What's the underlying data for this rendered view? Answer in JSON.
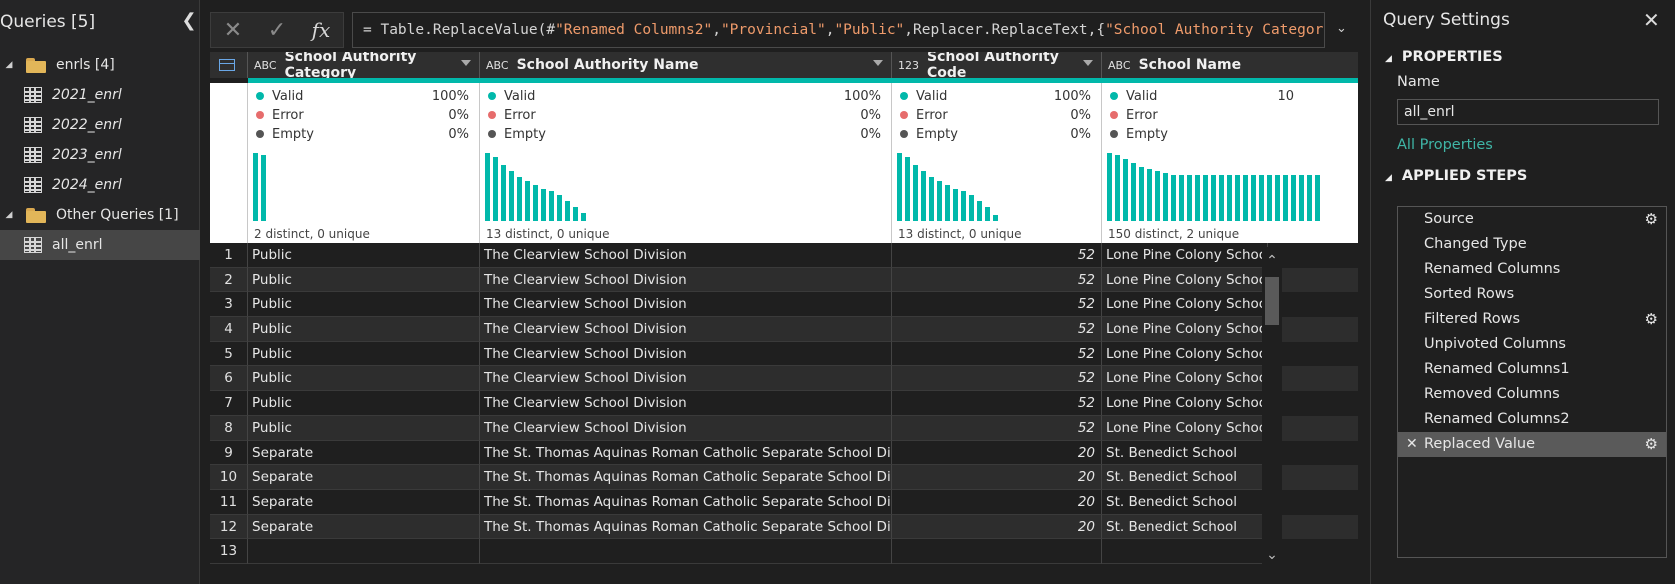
{
  "queries_pane": {
    "title": "Queries [5]",
    "groups": [
      {
        "label": "enrls [4]",
        "items": [
          "2021_enrl",
          "2022_enrl",
          "2023_enrl",
          "2024_enrl"
        ]
      },
      {
        "label": "Other Queries [1]",
        "items": [
          "all_enrl"
        ]
      }
    ],
    "selected": "all_enrl"
  },
  "formula_bar": {
    "prefix": "= Table.ReplaceValue(#",
    "s1": "\"Renamed Columns2\"",
    "c1": ",",
    "s2": "\"Provincial\"",
    "c2": ",",
    "s3": "\"Public\"",
    "mid": ",Replacer.ReplaceText,{",
    "s4": "\"School Authority Category\"",
    "suffix": "})",
    "fx_label": "fx"
  },
  "grid": {
    "columns": [
      {
        "type": "ABC",
        "name": "School Authority Category",
        "valid": "100%",
        "error": "0%",
        "empty": "0%",
        "distinct": "2 distinct, 0 unique",
        "bars": [
          68,
          66
        ]
      },
      {
        "type": "ABC",
        "name": "School Authority Name",
        "valid": "100%",
        "error": "0%",
        "empty": "0%",
        "distinct": "13 distinct, 0 unique",
        "bars": [
          68,
          64,
          56,
          50,
          44,
          40,
          36,
          32,
          30,
          26,
          20,
          14,
          8
        ]
      },
      {
        "type": "123",
        "name": "School Authority Code",
        "valid": "100%",
        "error": "0%",
        "empty": "0%",
        "distinct": "13 distinct, 0 unique",
        "bars": [
          68,
          64,
          56,
          50,
          44,
          40,
          36,
          32,
          30,
          26,
          20,
          14,
          6
        ]
      },
      {
        "type": "ABC",
        "name": "School Name",
        "valid": "10",
        "error": "",
        "empty": "",
        "distinct": "150 distinct, 2 unique",
        "bars": [
          68,
          66,
          62,
          58,
          54,
          52,
          50,
          48,
          46,
          46,
          46,
          46,
          46,
          46,
          46,
          46,
          46,
          46,
          46,
          46,
          46,
          46,
          46,
          46,
          46,
          46,
          46
        ]
      }
    ],
    "labels": {
      "valid": "Valid",
      "error": "Error",
      "empty": "Empty"
    },
    "rows": [
      [
        "1",
        "Public",
        "The Clearview School Division",
        "52",
        "Lone Pine Colony School"
      ],
      [
        "2",
        "Public",
        "The Clearview School Division",
        "52",
        "Lone Pine Colony School"
      ],
      [
        "3",
        "Public",
        "The Clearview School Division",
        "52",
        "Lone Pine Colony School"
      ],
      [
        "4",
        "Public",
        "The Clearview School Division",
        "52",
        "Lone Pine Colony School"
      ],
      [
        "5",
        "Public",
        "The Clearview School Division",
        "52",
        "Lone Pine Colony School"
      ],
      [
        "6",
        "Public",
        "The Clearview School Division",
        "52",
        "Lone Pine Colony School"
      ],
      [
        "7",
        "Public",
        "The Clearview School Division",
        "52",
        "Lone Pine Colony School"
      ],
      [
        "8",
        "Public",
        "The Clearview School Division",
        "52",
        "Lone Pine Colony School"
      ],
      [
        "9",
        "Separate",
        "The St. Thomas Aquinas Roman Catholic Separate School Division",
        "20",
        "St. Benedict School"
      ],
      [
        "10",
        "Separate",
        "The St. Thomas Aquinas Roman Catholic Separate School Division",
        "20",
        "St. Benedict School"
      ],
      [
        "11",
        "Separate",
        "The St. Thomas Aquinas Roman Catholic Separate School Division",
        "20",
        "St. Benedict School"
      ],
      [
        "12",
        "Separate",
        "The St. Thomas Aquinas Roman Catholic Separate School Division",
        "20",
        "St. Benedict School"
      ],
      [
        "13",
        "",
        "",
        "",
        ""
      ]
    ]
  },
  "settings": {
    "title": "Query Settings",
    "properties_header": "PROPERTIES",
    "name_label": "Name",
    "name_value": "all_enrl",
    "all_properties": "All Properties",
    "applied_steps_header": "APPLIED STEPS",
    "steps": [
      {
        "label": "Source",
        "gear": true
      },
      {
        "label": "Changed Type",
        "gear": false
      },
      {
        "label": "Renamed Columns",
        "gear": false
      },
      {
        "label": "Sorted Rows",
        "gear": false
      },
      {
        "label": "Filtered Rows",
        "gear": true
      },
      {
        "label": "Unpivoted Columns",
        "gear": false
      },
      {
        "label": "Renamed Columns1",
        "gear": false
      },
      {
        "label": "Removed Columns",
        "gear": false
      },
      {
        "label": "Renamed Columns2",
        "gear": false
      },
      {
        "label": "Replaced Value",
        "gear": true,
        "selected": true
      }
    ]
  },
  "colors": {
    "accent": "#01b8aa",
    "valid": "#01b8aa",
    "error": "#e66c6c",
    "empty": "#555555",
    "link": "#3fb5a6"
  }
}
